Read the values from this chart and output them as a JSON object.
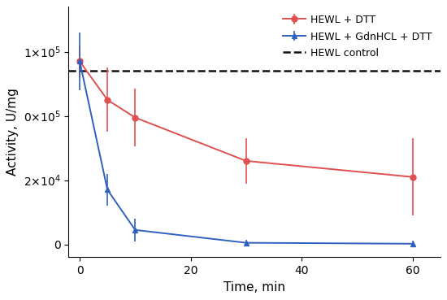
{
  "red_x": [
    0,
    5,
    10,
    30,
    60
  ],
  "red_y": [
    57000,
    45000,
    39500,
    26000,
    21000
  ],
  "red_yerr": [
    5000,
    10000,
    9000,
    7000,
    12000
  ],
  "blue_x": [
    0,
    5,
    10,
    30,
    60
  ],
  "blue_y": [
    57000,
    17000,
    4500,
    500,
    200
  ],
  "blue_yerr": [
    9000,
    5000,
    3500,
    1000,
    1000
  ],
  "control_y": 54000,
  "red_color": "#e05050",
  "blue_color": "#3060c0",
  "control_color": "#111111",
  "xlabel": "Time, min",
  "ylabel": "Activity, U/mg",
  "legend_red": "HEWL + DTT",
  "legend_blue": "HEWL + GdnHCL + DTT",
  "legend_control": "HEWL control",
  "xlim": [
    -2,
    65
  ],
  "ylim": [
    -4000,
    74000
  ],
  "figsize": [
    5.5,
    3.69
  ],
  "dpi": 100
}
